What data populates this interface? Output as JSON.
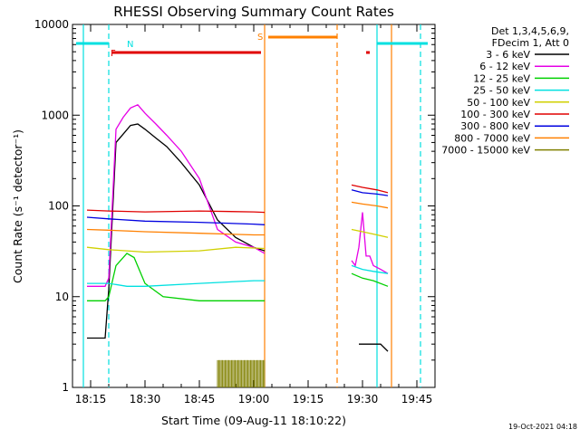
{
  "chart_data": {
    "type": "line",
    "title": "RHESSI Observing Summary Count Rates",
    "xlabel": "Start Time (09-Aug-11 18:10:22)",
    "ylabel": "Count Rate (s⁻¹ detector⁻¹)",
    "y_scale": "log",
    "ylim": [
      1,
      10000
    ],
    "xlim": [
      "18:10",
      "19:50"
    ],
    "x_ticks": [
      "18:15",
      "18:30",
      "18:45",
      "19:00",
      "19:15",
      "19:30",
      "19:45"
    ],
    "y_ticks": [
      "1",
      "10",
      "100",
      "1000",
      "10000"
    ],
    "legend_header": [
      "Det 1,3,4,5,6,9,",
      "FDecim 1, Att 0"
    ],
    "legend_position": "right",
    "timestamp": "19-Oct-2021 04:18",
    "flag_labels": {
      "night": "N",
      "flare": "F",
      "saa": "S"
    },
    "series": [
      {
        "name": "3 - 6 keV",
        "color": "#000000",
        "x": [
          "18:14",
          "18:19",
          "18:20",
          "18:22",
          "18:24",
          "18:26",
          "18:28",
          "18:30",
          "18:33",
          "18:36",
          "18:40",
          "18:45",
          "18:50",
          "18:55",
          "19:00",
          "19:03",
          null,
          "19:29",
          "19:31",
          "19:33",
          "19:35",
          "19:37"
        ],
        "y": [
          3.5,
          3.5,
          12,
          500,
          620,
          770,
          800,
          700,
          560,
          450,
          300,
          170,
          70,
          45,
          35,
          32,
          null,
          3,
          3,
          3,
          3,
          2.5
        ]
      },
      {
        "name": "6 - 12 keV",
        "color": "#e600e6",
        "x": [
          "18:14",
          "18:19",
          "18:20",
          "18:22",
          "18:24",
          "18:26",
          "18:28",
          "18:30",
          "18:33",
          "18:36",
          "18:40",
          "18:45",
          "18:50",
          "18:55",
          "19:00",
          "19:03",
          null,
          "19:27",
          "19:28",
          "19:29",
          "19:30",
          "19:31",
          "19:32",
          "19:33",
          "19:35",
          "19:37"
        ],
        "y": [
          13,
          13,
          16,
          700,
          950,
          1200,
          1300,
          1050,
          800,
          600,
          400,
          200,
          55,
          40,
          35,
          30,
          null,
          25,
          22,
          35,
          85,
          28,
          28,
          22,
          20,
          18
        ]
      },
      {
        "name": "12 - 25 keV",
        "color": "#00d000",
        "x": [
          "18:14",
          "18:19",
          "18:20",
          "18:22",
          "18:25",
          "18:27",
          "18:30",
          "18:35",
          "18:45",
          "18:55",
          "19:03",
          null,
          "19:27",
          "19:30",
          "19:33",
          "19:37"
        ],
        "y": [
          9,
          9,
          10,
          22,
          30,
          27,
          14,
          10,
          9,
          9,
          9,
          null,
          18,
          16,
          15,
          13
        ]
      },
      {
        "name": "25 - 50 keV",
        "color": "#00e0e0",
        "x": [
          "18:14",
          "18:19",
          "18:20",
          "18:25",
          "18:30",
          "18:45",
          "19:00",
          "19:03",
          null,
          "19:27",
          "19:30",
          "19:33",
          "19:37"
        ],
        "y": [
          14,
          14,
          14,
          13,
          13,
          14,
          15,
          15,
          null,
          22,
          20,
          19,
          18
        ]
      },
      {
        "name": "50 - 100 keV",
        "color": "#d0d000",
        "x": [
          "18:14",
          "18:20",
          "18:30",
          "18:45",
          "18:55",
          "19:03",
          null,
          "19:27",
          "19:30",
          "19:34",
          "19:37"
        ],
        "y": [
          35,
          33,
          31,
          32,
          35,
          34,
          null,
          55,
          52,
          48,
          45
        ]
      },
      {
        "name": "100 - 300 keV",
        "color": "#e00000",
        "x": [
          "18:14",
          "18:20",
          "18:30",
          "18:45",
          "19:00",
          "19:03",
          null,
          "19:27",
          "19:30",
          "19:34",
          "19:37"
        ],
        "y": [
          90,
          88,
          86,
          88,
          86,
          85,
          null,
          170,
          160,
          150,
          140
        ]
      },
      {
        "name": "300 - 800 keV",
        "color": "#0000e0",
        "x": [
          "18:14",
          "18:20",
          "18:30",
          "18:45",
          "19:00",
          "19:03",
          null,
          "19:27",
          "19:30",
          "19:34",
          "19:37"
        ],
        "y": [
          75,
          72,
          68,
          66,
          63,
          62,
          null,
          150,
          140,
          135,
          130
        ]
      },
      {
        "name": "800 - 7000 keV",
        "color": "#ff8000",
        "x": [
          "18:14",
          "18:20",
          "18:30",
          "18:45",
          "19:00",
          "19:03",
          null,
          "19:27",
          "19:30",
          "19:34",
          "19:37"
        ],
        "y": [
          55,
          54,
          52,
          50,
          48,
          48,
          null,
          110,
          105,
          100,
          95
        ]
      },
      {
        "name": "7000 - 15000 keV",
        "color": "#808000",
        "x": [
          "18:50",
          "19:03"
        ],
        "y": [
          2,
          2
        ]
      }
    ]
  }
}
